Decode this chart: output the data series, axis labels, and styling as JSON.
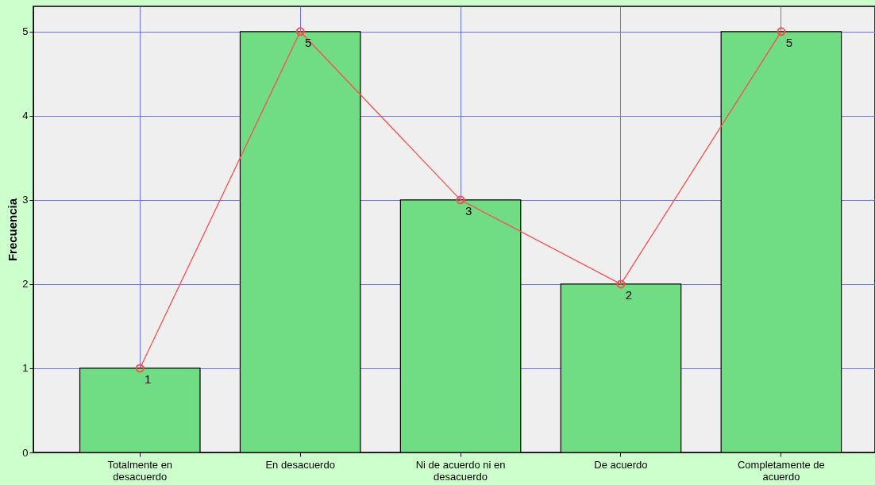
{
  "chart_data": {
    "type": "bar",
    "ylabel": "Frecuencia",
    "categories": [
      "Totalmente en desacuerdo",
      "En desacuerdo",
      "Ni de acuerdo ni en desacuerdo",
      "De acuerdo",
      "Completamente de acuerdo"
    ],
    "series": [
      {
        "color": "#70dc84",
        "values": [
          1,
          5,
          3,
          2,
          5
        ]
      },
      {
        "type": "line",
        "color": "#ff4d4d",
        "marker": "circle",
        "values": [
          1,
          5,
          3,
          2,
          5
        ],
        "value_labels": [
          "1",
          "5",
          "3",
          "2",
          "5"
        ]
      }
    ],
    "ylim": [
      0,
      5.3
    ],
    "yticks": [
      0,
      1,
      2,
      3,
      4,
      5
    ],
    "grid": true
  }
}
